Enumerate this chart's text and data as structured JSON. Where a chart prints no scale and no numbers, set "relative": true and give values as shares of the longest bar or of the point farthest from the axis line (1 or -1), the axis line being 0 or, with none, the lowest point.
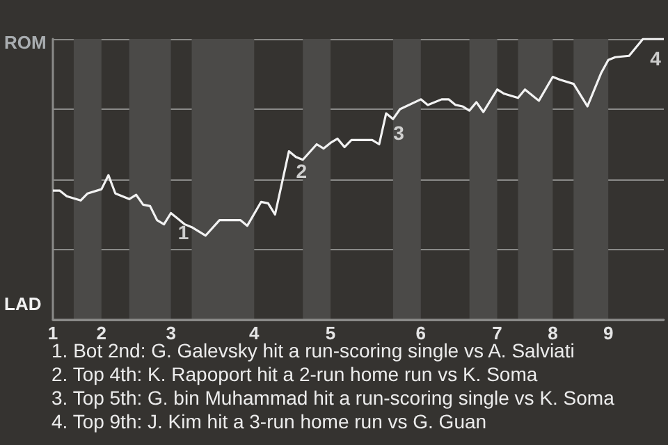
{
  "chart_data": {
    "type": "line",
    "relative": true,
    "categories": [
      "1",
      null,
      null,
      null,
      null,
      null,
      null,
      "2",
      null,
      null,
      null,
      null,
      null,
      null,
      null,
      null,
      null,
      "3",
      null,
      null,
      null,
      null,
      null,
      null,
      null,
      null,
      null,
      null,
      null,
      "4",
      null,
      null,
      null,
      null,
      null,
      null,
      null,
      null,
      null,
      null,
      "5",
      null,
      null,
      null,
      null,
      null,
      null,
      null,
      null,
      null,
      null,
      null,
      null,
      "6",
      null,
      null,
      null,
      null,
      null,
      null,
      null,
      null,
      null,
      null,
      "7",
      null,
      null,
      null,
      null,
      null,
      null,
      null,
      "8",
      null,
      null,
      null,
      null,
      null,
      null,
      null,
      "9",
      null,
      null,
      null,
      null,
      null,
      null,
      null,
      null
    ],
    "series": [
      {
        "color": "#f2f2f2",
        "values": [
          0.46,
          0.46,
          0.44,
          null,
          0.425,
          0.45,
          null,
          0.465,
          0.515,
          0.45,
          null,
          0.43,
          0.445,
          0.41,
          0.405,
          0.355,
          0.34,
          0.38,
          0.36,
          0.34,
          0.33,
          null,
          0.3,
          null,
          0.355,
          null,
          null,
          0.355,
          0.335,
          null,
          0.42,
          0.415,
          0.375,
          null,
          0.6,
          0.58,
          0.57,
          null,
          0.625,
          0.61,
          0.63,
          0.645,
          0.615,
          0.64,
          null,
          null,
          0.64,
          0.625,
          0.735,
          0.715,
          0.75,
          null,
          null,
          0.785,
          0.765,
          null,
          0.785,
          0.785,
          0.765,
          0.76,
          0.745,
          0.775,
          0.74,
          null,
          0.82,
          0.805,
          null,
          0.79,
          0.82,
          null,
          0.78,
          null,
          0.865,
          0.855,
          null,
          0.84,
          null,
          0.76,
          null,
          0.88,
          0.925,
          0.935,
          null,
          0.94,
          null,
          1,
          null,
          null,
          1
        ]
      }
    ],
    "grid": "y",
    "marker": "none",
    "line_style": "solid",
    "annotations": [
      "ROM",
      "LAD",
      {
        "text": "1",
        "x": "3",
        "y": 0.38
      },
      {
        "text": "2",
        "y": 0.6
      },
      {
        "text": "3",
        "y": 0.735
      },
      {
        "text": "4",
        "y": 1
      },
      "1. Bot 2nd: G. Galevsky hit a run-scoring single vs A. Salviati",
      "2. Top 4th: K. Rapoport hit a 2-run home run vs K. Soma",
      "3. Top 5th: G. bin Muhammad hit a run-scoring single vs K. Soma",
      "4. Top 9th: J. Kim hit a 3-run home run vs G. Guan"
    ]
  }
}
